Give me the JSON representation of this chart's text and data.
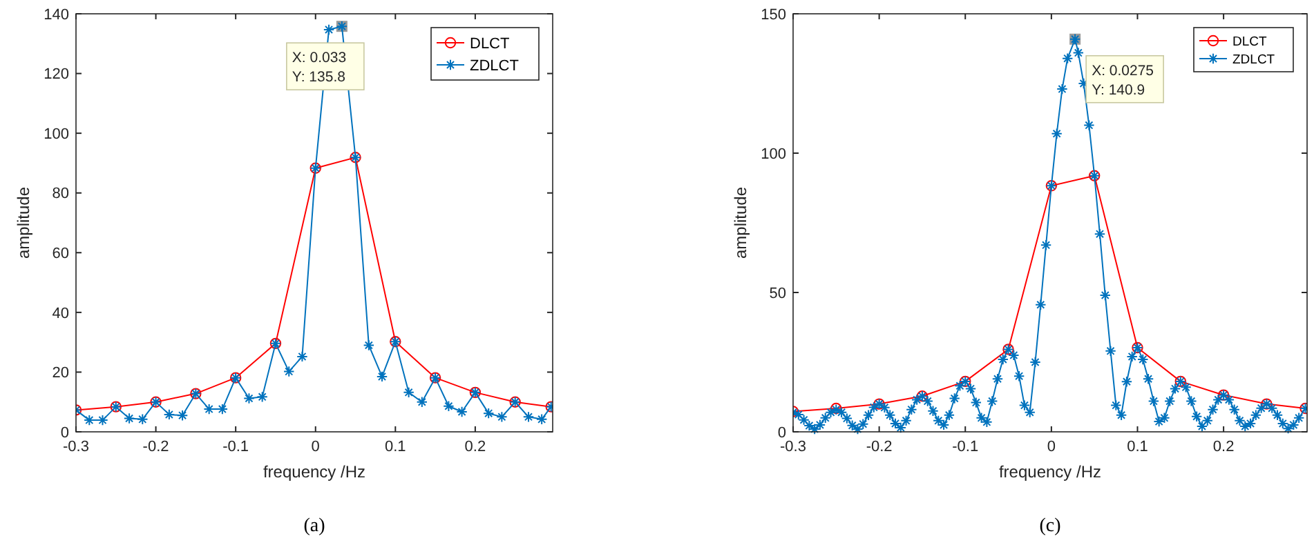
{
  "chart_data": [
    {
      "type": "line",
      "xlabel": "frequency /Hz",
      "ylabel": "amplitude",
      "xlim": [
        -0.3,
        0.297
      ],
      "ylim": [
        0,
        140
      ],
      "xticks": [
        -0.3,
        -0.2,
        -0.1,
        0,
        0.1,
        0.2
      ],
      "yticks": [
        0,
        20,
        40,
        60,
        80,
        100,
        120,
        140
      ],
      "grid": false,
      "legend": "top right",
      "series": [
        {
          "name": "DLCT",
          "color": "#ff0000",
          "marker": "circle",
          "x": [
            -0.3,
            -0.25,
            -0.2,
            -0.15,
            -0.1,
            -0.05,
            0,
            0.05,
            0.1,
            0.15,
            0.2,
            0.25,
            0.295
          ],
          "values": [
            7.3,
            8.4,
            10,
            12.8,
            18.1,
            29.6,
            88.3,
            91.9,
            30.2,
            18.1,
            13.2,
            10,
            8.4
          ]
        },
        {
          "name": "ZDLCT",
          "color": "#0072bd",
          "marker": "cross",
          "x": [
            -0.3,
            -0.2833,
            -0.2667,
            -0.25,
            -0.2333,
            -0.2167,
            -0.2,
            -0.1833,
            -0.1667,
            -0.15,
            -0.1333,
            -0.1167,
            -0.1,
            -0.0833,
            -0.0667,
            -0.05,
            -0.0333,
            -0.0167,
            0,
            0.0167,
            0.033,
            0.05,
            0.0667,
            0.0833,
            0.1,
            0.1167,
            0.1333,
            0.15,
            0.1667,
            0.1833,
            0.2,
            0.2167,
            0.2333,
            0.25,
            0.2667,
            0.2833,
            0.295
          ],
          "values": [
            7.3,
            3.9,
            3.9,
            8.4,
            4.5,
            4.2,
            10,
            5.8,
            5.5,
            12.8,
            7.6,
            7.6,
            18.1,
            11.2,
            11.7,
            29.6,
            20.2,
            25.2,
            88.3,
            134.7,
            135.8,
            91.9,
            29,
            18.5,
            30.2,
            13.2,
            10,
            18.1,
            8.6,
            6.7,
            13.2,
            6.2,
            5,
            10,
            5,
            4.2,
            8.4
          ]
        }
      ],
      "annotations": [
        {
          "text": "X: 0.033\nY: 135.8",
          "x": 0.033,
          "y": 135.8
        },
        "(a)"
      ]
    },
    {
      "type": "line",
      "xlabel": "frequency /Hz",
      "ylabel": "amplitude",
      "xlim": [
        -0.3,
        0.297
      ],
      "ylim": [
        0,
        150
      ],
      "xticks": [
        -0.3,
        -0.2,
        -0.1,
        0,
        0.1,
        0.2
      ],
      "yticks": [
        0,
        50,
        100,
        150
      ],
      "grid": false,
      "legend": "top right",
      "series": [
        {
          "name": "DLCT",
          "color": "#ff0000",
          "marker": "circle",
          "x": [
            -0.3,
            -0.25,
            -0.2,
            -0.15,
            -0.1,
            -0.05,
            0,
            0.05,
            0.1,
            0.15,
            0.2,
            0.25,
            0.295
          ],
          "values": [
            7.3,
            8.4,
            10,
            12.8,
            18.1,
            29.6,
            88.3,
            91.9,
            30.2,
            18.1,
            13.2,
            10,
            8.4
          ]
        },
        {
          "name": "ZDLCT",
          "color": "#0072bd",
          "marker": "cross",
          "x": [
            -0.3,
            -0.29375,
            -0.2875,
            -0.28125,
            -0.275,
            -0.26875,
            -0.2625,
            -0.25625,
            -0.25,
            -0.24375,
            -0.2375,
            -0.23125,
            -0.225,
            -0.21875,
            -0.2125,
            -0.20625,
            -0.2,
            -0.19375,
            -0.1875,
            -0.18125,
            -0.175,
            -0.16875,
            -0.1625,
            -0.15625,
            -0.15,
            -0.14375,
            -0.1375,
            -0.13125,
            -0.125,
            -0.11875,
            -0.1125,
            -0.10625,
            -0.1,
            -0.09375,
            -0.0875,
            -0.08125,
            -0.075,
            -0.06875,
            -0.0625,
            -0.05625,
            -0.05,
            -0.04375,
            -0.0375,
            -0.03125,
            -0.025,
            -0.01875,
            -0.0125,
            -0.00625,
            0,
            0.00625,
            0.0125,
            0.01875,
            0.0275,
            0.03125,
            0.0375,
            0.04375,
            0.05,
            0.05625,
            0.0625,
            0.06875,
            0.075,
            0.08125,
            0.0875,
            0.09375,
            0.1,
            0.10625,
            0.1125,
            0.11875,
            0.125,
            0.13125,
            0.1375,
            0.14375,
            0.15,
            0.15625,
            0.1625,
            0.16875,
            0.175,
            0.18125,
            0.1875,
            0.19375,
            0.2,
            0.20625,
            0.2125,
            0.21875,
            0.225,
            0.23125,
            0.2375,
            0.24375,
            0.25,
            0.25625,
            0.2625,
            0.26875,
            0.275,
            0.28125,
            0.2875,
            0.295
          ],
          "values": [
            7,
            6.2,
            4.3,
            2.2,
            1,
            2.5,
            5,
            7,
            8,
            7,
            4.8,
            2.3,
            1,
            2.8,
            6,
            8.8,
            10,
            8.7,
            6,
            3,
            1.5,
            4,
            8,
            11.5,
            12.8,
            11,
            7.5,
            4,
            2.5,
            6,
            12,
            16.5,
            18.1,
            15.5,
            10.5,
            5,
            3.5,
            11,
            19,
            26,
            29.6,
            27.5,
            20,
            9.5,
            7,
            25,
            45.6,
            67,
            88.3,
            107,
            123,
            134,
            140.9,
            136,
            125,
            110,
            91.9,
            71,
            49,
            29,
            9.5,
            6,
            18,
            27,
            30.2,
            26,
            19,
            11,
            3.7,
            5,
            11,
            15.5,
            18.1,
            16,
            11,
            5.5,
            2,
            4,
            8,
            11.5,
            13.2,
            11.5,
            8,
            4,
            2,
            3,
            6,
            8.5,
            10,
            8.5,
            6,
            3,
            1.2,
            2.5,
            5,
            8.4
          ]
        }
      ],
      "annotations": [
        {
          "text": "X: 0.0275\nY: 140.9",
          "x": 0.0275,
          "y": 140.9
        },
        "(c)"
      ]
    }
  ]
}
